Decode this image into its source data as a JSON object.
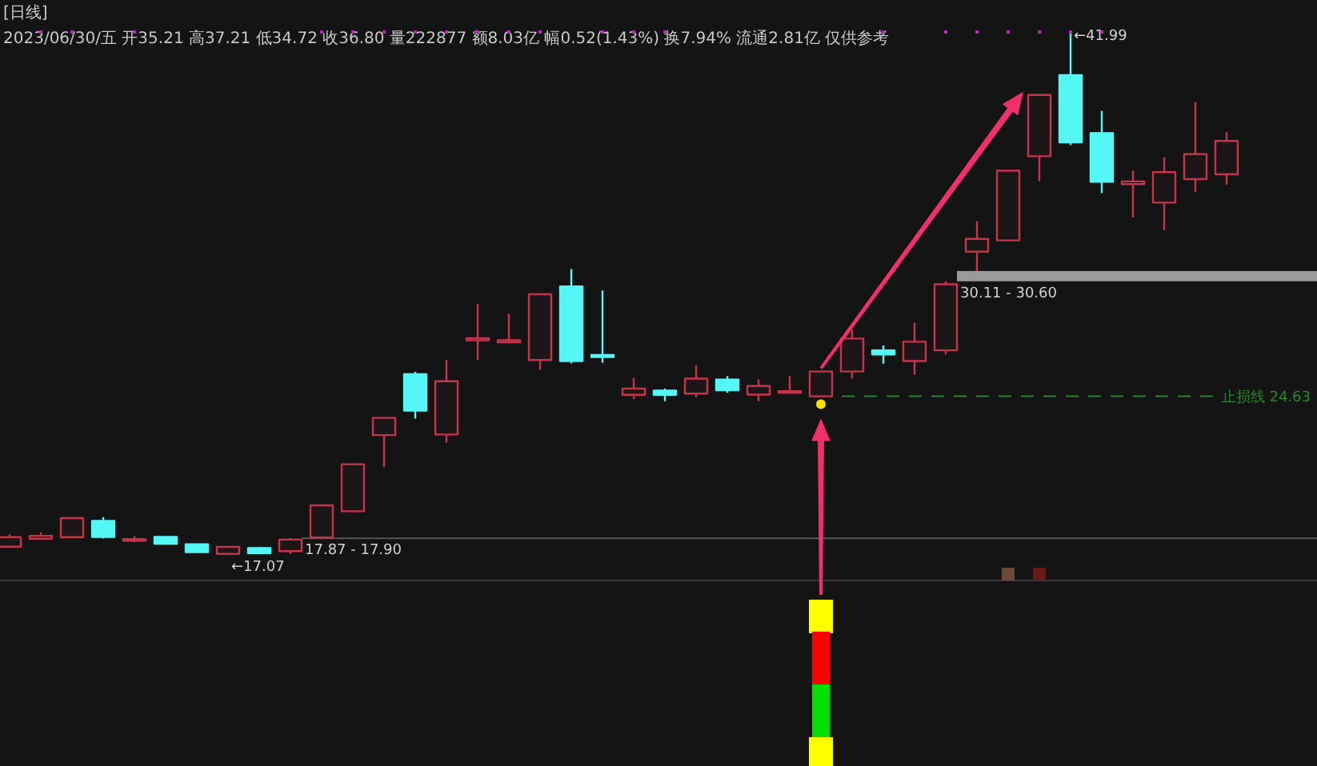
{
  "chart_data": {
    "type": "candlestick",
    "title": "[日线]",
    "subtitle": "2023/06/30/五 开35.21 高37.21 低34.72 收36.80 量222877 额8.03亿 幅0.52(1.43%) 换7.94% 流通2.81亿 仅供参考",
    "categories": [
      null,
      null,
      null,
      null,
      null,
      null,
      null,
      null,
      null,
      null,
      null,
      null,
      null,
      null,
      null,
      null,
      null,
      null,
      null,
      null,
      null,
      null,
      null,
      null,
      null,
      null,
      null,
      null,
      null,
      null,
      null,
      null,
      null,
      null,
      null,
      null,
      null,
      null,
      null,
      null
    ],
    "ohlc": [
      [
        17.46,
        18.05,
        17.4,
        17.92
      ],
      [
        17.84,
        18.15,
        17.8,
        17.98
      ],
      [
        17.92,
        18.85,
        17.9,
        18.82
      ],
      [
        18.69,
        18.87,
        17.85,
        17.93
      ],
      [
        17.82,
        17.97,
        17.67,
        17.8
      ],
      [
        17.93,
        17.95,
        17.58,
        17.6
      ],
      [
        17.58,
        17.6,
        17.18,
        17.2
      ],
      [
        17.12,
        17.48,
        17.07,
        17.45
      ],
      [
        17.4,
        17.45,
        17.12,
        17.15
      ],
      [
        17.25,
        17.87,
        17.12,
        17.8
      ],
      [
        17.9,
        19.45,
        17.9,
        19.43
      ],
      [
        19.15,
        21.39,
        19.1,
        21.39
      ],
      [
        22.78,
        23.6,
        21.26,
        23.6
      ],
      [
        25.68,
        25.8,
        23.57,
        23.95
      ],
      [
        22.81,
        26.36,
        22.42,
        25.35
      ],
      [
        27.3,
        29.03,
        26.36,
        27.4
      ],
      [
        27.2,
        28.57,
        27.15,
        27.3
      ],
      [
        26.36,
        29.49,
        25.9,
        29.49
      ],
      [
        29.87,
        30.69,
        26.2,
        26.31
      ],
      [
        26.6,
        29.67,
        26.22,
        26.5
      ],
      [
        24.7,
        25.5,
        24.5,
        25.0
      ],
      [
        24.9,
        25.0,
        24.4,
        24.7
      ],
      [
        24.76,
        26.11,
        24.59,
        25.47
      ],
      [
        25.43,
        25.6,
        24.8,
        24.92
      ],
      [
        24.71,
        25.43,
        24.4,
        25.12
      ],
      [
        24.84,
        25.6,
        24.8,
        24.87
      ],
      [
        24.63,
        25.81,
        24.63,
        25.81
      ],
      [
        25.81,
        27.81,
        25.47,
        27.38
      ],
      [
        26.82,
        27.05,
        26.19,
        26.62
      ],
      [
        26.31,
        28.14,
        25.66,
        27.23
      ],
      [
        26.82,
        30.11,
        26.62,
        29.97
      ],
      [
        31.52,
        32.97,
        30.6,
        32.13
      ],
      [
        32.06,
        35.38,
        32.0,
        35.38
      ],
      [
        36.07,
        38.99,
        34.88,
        38.99
      ],
      [
        39.93,
        41.99,
        36.6,
        36.73
      ],
      [
        37.17,
        38.23,
        34.31,
        34.85
      ],
      [
        34.74,
        35.38,
        33.15,
        34.87
      ],
      [
        33.86,
        36.02,
        32.54,
        35.31
      ],
      [
        34.98,
        38.64,
        34.37,
        36.17
      ],
      [
        35.21,
        37.21,
        34.72,
        36.8
      ]
    ],
    "colors": [
      "#c8324a",
      "#c8324a",
      "#c8324a",
      "#54f6f6",
      "#c8324a",
      "#54f6f6",
      "#54f6f6",
      "#c8324a",
      "#54f6f6",
      "#c8324a",
      "#c8324a",
      "#c8324a",
      "#c8324a",
      "#54f6f6",
      "#c8324a",
      "#c8324a",
      "#c8324a",
      "#c8324a",
      "#54f6f6",
      "#54f6f6",
      "#c8324a",
      "#54f6f6",
      "#c8324a",
      "#54f6f6",
      "#c8324a",
      "#c8324a",
      "#c8324a",
      "#c8324a",
      "#54f6f6",
      "#c8324a",
      "#c8324a",
      "#c8324a",
      "#c8324a",
      "#c8324a",
      "#54f6f6",
      "#54f6f6",
      "#c8324a",
      "#c8324a",
      "#c8324a",
      "#c8324a"
    ],
    "ref_lines": [
      {
        "axis": "y",
        "value": 24.63,
        "label": "止损线 24.63",
        "color": "#1f8a2a",
        "line_style": "dashed"
      }
    ],
    "bands": [
      {
        "axis": "y",
        "from": 30.11,
        "to": 30.6,
        "label": "30.11 - 30.60",
        "color": "#9a9a9a"
      },
      {
        "axis": "y",
        "from": 17.87,
        "to": 17.9,
        "label": "17.87 - 17.90",
        "color": "#555555"
      }
    ],
    "annotations": [
      {
        "text": "←17.07",
        "y": 17.07
      },
      {
        "text": "←41.99",
        "y": 41.99
      }
    ]
  }
}
